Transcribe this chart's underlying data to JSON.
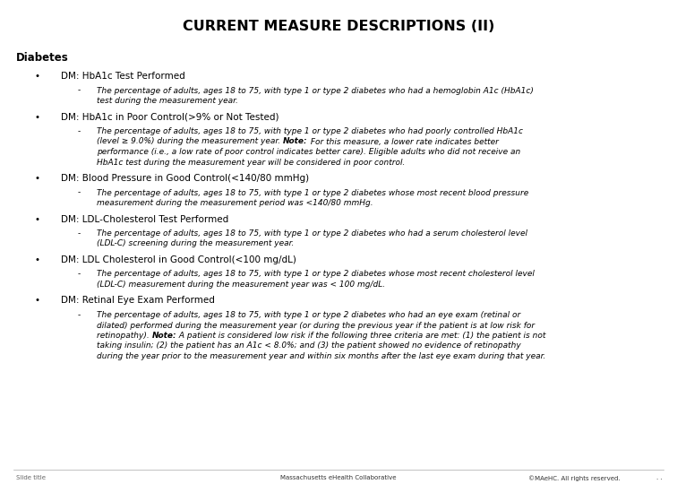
{
  "title": "CURRENT MEASURE DESCRIPTIONS (II)",
  "section": "Diabetes",
  "background_color": "#ffffff",
  "title_fontsize": 11.5,
  "section_fontsize": 8.5,
  "bullet_fontsize": 7.5,
  "sub_fontsize": 6.5,
  "footer_fontsize": 5.0,
  "footer_left": "Slide title",
  "footer_center": "Massachusetts eHealth Collaborative",
  "footer_right": "©MAeHC. All rights reserved.",
  "footer_dots": ". .",
  "bullets": [
    {
      "title": "DM: HbA1c Test Performed",
      "desc_parts": [
        {
          "text": "The percentage of adults, ages 18 to 75, with type 1 or type 2 diabetes who had a hemoglobin A1c (HbA1c)\ntest during the measurement year.",
          "bold": false
        }
      ]
    },
    {
      "title": "DM: HbA1c in Poor Control(>9% or Not Tested)",
      "desc_parts": [
        {
          "text": "The percentage of adults, ages 18 to 75, with type 1 or type 2 diabetes who had poorly controlled HbA1c\n(level ≥ 9.0%) during the measurement year. ",
          "bold": false
        },
        {
          "text": "Note:",
          "bold": true
        },
        {
          "text": " For this measure, a lower rate indicates better\nperformance (i.e., a low rate of poor control indicates better care). Eligible adults who did not receive an\nHbA1c test during the measurement year will be considered in poor control.",
          "bold": false
        }
      ]
    },
    {
      "title": "DM: Blood Pressure in Good Control(<140/80 mmHg)",
      "desc_parts": [
        {
          "text": "The percentage of adults, ages 18 to 75, with type 1 or type 2 diabetes whose most recent blood pressure\nmeasurement during the measurement period was <140/80 mmHg.",
          "bold": false
        }
      ]
    },
    {
      "title": "DM: LDL-Cholesterol Test Performed",
      "desc_parts": [
        {
          "text": "The percentage of adults, ages 18 to 75, with type 1 or type 2 diabetes who had a serum cholesterol level\n(LDL-C) screening during the measurement year.",
          "bold": false
        }
      ]
    },
    {
      "title": "DM: LDL Cholesterol in Good Control(<100 mg/dL)",
      "desc_parts": [
        {
          "text": "The percentage of adults, ages 18 to 75, with type 1 or type 2 diabetes whose most recent cholesterol level\n(LDL-C) measurement during the measurement year was < 100 mg/dL.",
          "bold": false
        }
      ]
    },
    {
      "title": "DM: Retinal Eye Exam Performed",
      "desc_parts": [
        {
          "text": "The percentage of adults, ages 18 to 75, with type 1 or type 2 diabetes who had an eye exam (retinal or\ndilated) performed during the measurement year (or during the previous year if the patient is at low risk for\nretinopathy). ",
          "bold": false
        },
        {
          "text": "Note:",
          "bold": true
        },
        {
          "text": " A patient is considered low risk if the following three criteria are met: (1) the patient is not\ntaking insulin; (2) the patient has an A1c < 8.0%; and (3) the patient showed no evidence of retinopathy\nduring the year prior to the measurement year and within six months after the last eye exam during that year.",
          "bold": false
        }
      ]
    }
  ]
}
